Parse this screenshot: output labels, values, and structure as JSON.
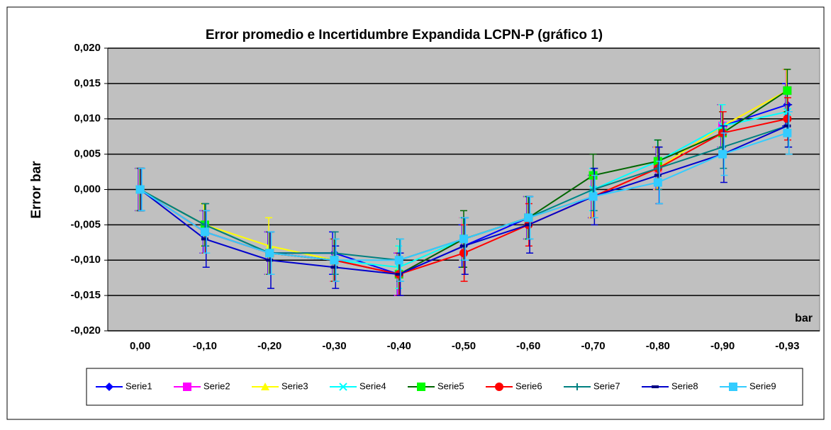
{
  "chart_data": {
    "type": "line",
    "title": "Error promedio e Incertidumbre Expandida LCPN-P (gráfico 1)",
    "y_label": "Error bar",
    "x_label": "bar",
    "categories": [
      "0,00",
      "-0,10",
      "-0,20",
      "-0,30",
      "-0,40",
      "-0,50",
      "-0,60",
      "-0,70",
      "-0,80",
      "-0,90",
      "-0,93"
    ],
    "ylim": [
      -0.02,
      0.02
    ],
    "yticks": [
      {
        "value": -0.02,
        "label": "-0,020"
      },
      {
        "value": -0.015,
        "label": "-0,015"
      },
      {
        "value": -0.01,
        "label": "-0,010"
      },
      {
        "value": -0.005,
        "label": "-0,005"
      },
      {
        "value": 0,
        "label": "0,000"
      },
      {
        "value": 0.005,
        "label": "0,005"
      },
      {
        "value": 0.01,
        "label": "0,010"
      },
      {
        "value": 0.015,
        "label": "0,015"
      },
      {
        "value": 0.02,
        "label": "0,020"
      }
    ],
    "grid": true,
    "series": [
      {
        "name": "Serie1",
        "color": "#0000ff",
        "marker": "diamond",
        "values": [
          0,
          -0.006,
          -0.009,
          -0.009,
          -0.012,
          -0.008,
          -0.004,
          -0.001,
          0.003,
          0.009,
          0.012
        ],
        "errors": [
          0.003,
          0.003,
          0.003,
          0.003,
          0.003,
          0.003,
          0.003,
          0.003,
          0.003,
          0.003,
          0.003
        ]
      },
      {
        "name": "Serie2",
        "color": "#ff00ff",
        "marker": "square",
        "values": [
          0,
          -0.006,
          -0.009,
          -0.01,
          -0.012,
          -0.007,
          -0.004,
          -0.001,
          0.003,
          0.009,
          0.014
        ],
        "errors": [
          0.003,
          0.003,
          0.003,
          0.003,
          0.003,
          0.003,
          0.003,
          0.003,
          0.003,
          0.003,
          0.003
        ]
      },
      {
        "name": "Serie3",
        "color": "#ffff00",
        "marker": "triangle",
        "values": [
          0,
          -0.005,
          -0.008,
          -0.01,
          -0.011,
          -0.007,
          -0.004,
          -0.001,
          0.003,
          0.009,
          0.014
        ],
        "errors": [
          0.003,
          0.003,
          0.004,
          0.003,
          0.003,
          0.003,
          0.003,
          0.003,
          0.003,
          0.003,
          0.003
        ]
      },
      {
        "name": "Serie4",
        "color": "#00ffff",
        "marker": "x",
        "values": [
          0,
          -0.006,
          -0.009,
          -0.01,
          -0.011,
          -0.007,
          -0.004,
          0,
          0.004,
          0.009,
          0.011
        ],
        "errors": [
          0.003,
          0.003,
          0.003,
          0.003,
          0.003,
          0.003,
          0.003,
          0.003,
          0.003,
          0.003,
          0.003
        ]
      },
      {
        "name": "Serie5",
        "color": "#00ff00",
        "line": "#006600",
        "marker": "square",
        "values": [
          0,
          -0.005,
          -0.009,
          -0.01,
          -0.012,
          -0.007,
          -0.004,
          0.002,
          0.004,
          0.008,
          0.014
        ],
        "errors": [
          0.003,
          0.003,
          0.003,
          0.003,
          0.003,
          0.004,
          0.003,
          0.003,
          0.003,
          0.003,
          0.003
        ]
      },
      {
        "name": "Serie6",
        "color": "#ff0000",
        "marker": "circle",
        "values": [
          0,
          -0.006,
          -0.009,
          -0.01,
          -0.012,
          -0.009,
          -0.005,
          -0.001,
          0.003,
          0.008,
          0.01
        ],
        "errors": [
          0.003,
          0.003,
          0.003,
          0.003,
          0.003,
          0.004,
          0.003,
          0.003,
          0.003,
          0.003,
          0.003
        ]
      },
      {
        "name": "Serie7",
        "color": "#008080",
        "marker": "plus",
        "values": [
          0,
          -0.005,
          -0.009,
          -0.009,
          -0.01,
          -0.007,
          -0.004,
          0,
          0.003,
          0.006,
          0.009
        ],
        "errors": [
          0.003,
          0.003,
          0.003,
          0.003,
          0.003,
          0.003,
          0.003,
          0.003,
          0.003,
          0.003,
          0.003
        ]
      },
      {
        "name": "Serie8",
        "color": "#000080",
        "line": "#0000cc",
        "marker": "dash",
        "values": [
          0,
          -0.007,
          -0.01,
          -0.011,
          -0.012,
          -0.008,
          -0.005,
          -0.001,
          0.002,
          0.005,
          0.009
        ],
        "errors": [
          0.003,
          0.004,
          0.004,
          0.003,
          0.003,
          0.004,
          0.004,
          0.004,
          0.004,
          0.004,
          0.003
        ]
      },
      {
        "name": "Serie9",
        "color": "#33ccff",
        "marker": "square",
        "values": [
          0,
          -0.006,
          -0.009,
          -0.01,
          -0.01,
          -0.007,
          -0.004,
          -0.001,
          0.001,
          0.005,
          0.008
        ],
        "errors": [
          0.003,
          0.003,
          0.003,
          0.003,
          0.003,
          0.003,
          0.003,
          0.003,
          0.003,
          0.003,
          0.003
        ]
      }
    ]
  }
}
